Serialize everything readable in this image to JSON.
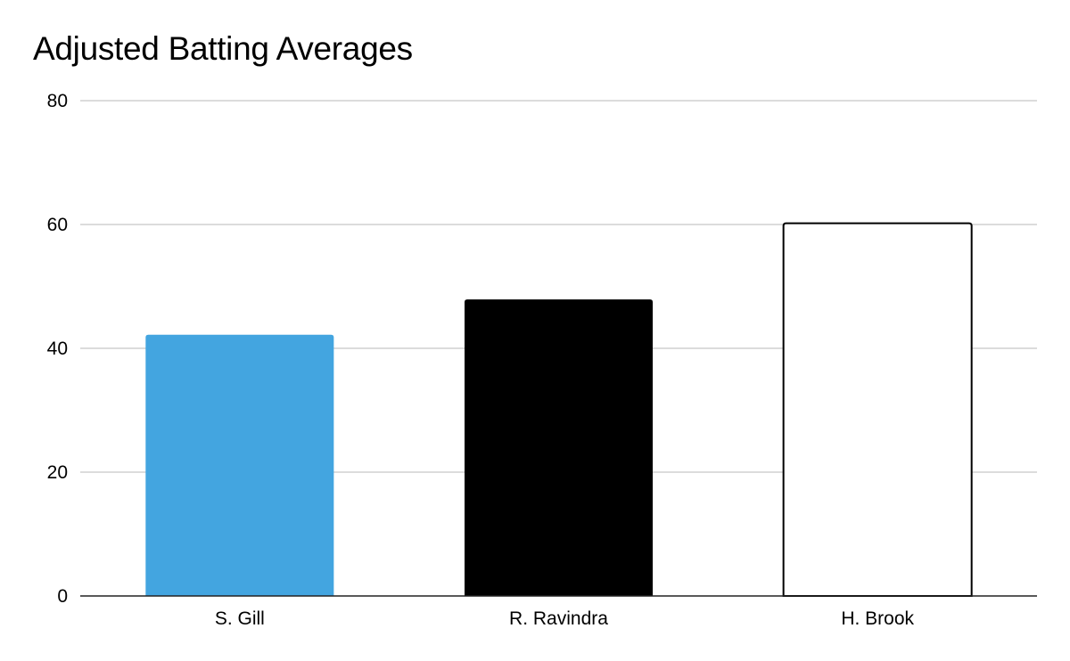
{
  "chart_data": {
    "type": "bar",
    "title": "Adjusted Batting Averages",
    "xlabel": "",
    "ylabel": "",
    "categories": [
      "S. Gill",
      "R. Ravindra",
      "H. Brook"
    ],
    "values": [
      42.2,
      47.9,
      60.2
    ],
    "bar_colors": [
      "#43A5E0",
      "#000000",
      "#FFFFFF"
    ],
    "bar_outline_colors": [
      "#43A5E0",
      "#000000",
      "#000000"
    ],
    "ylim": [
      0,
      80
    ],
    "yticks": [
      0,
      20,
      40,
      60,
      80
    ],
    "grid": true,
    "legend": "none"
  }
}
